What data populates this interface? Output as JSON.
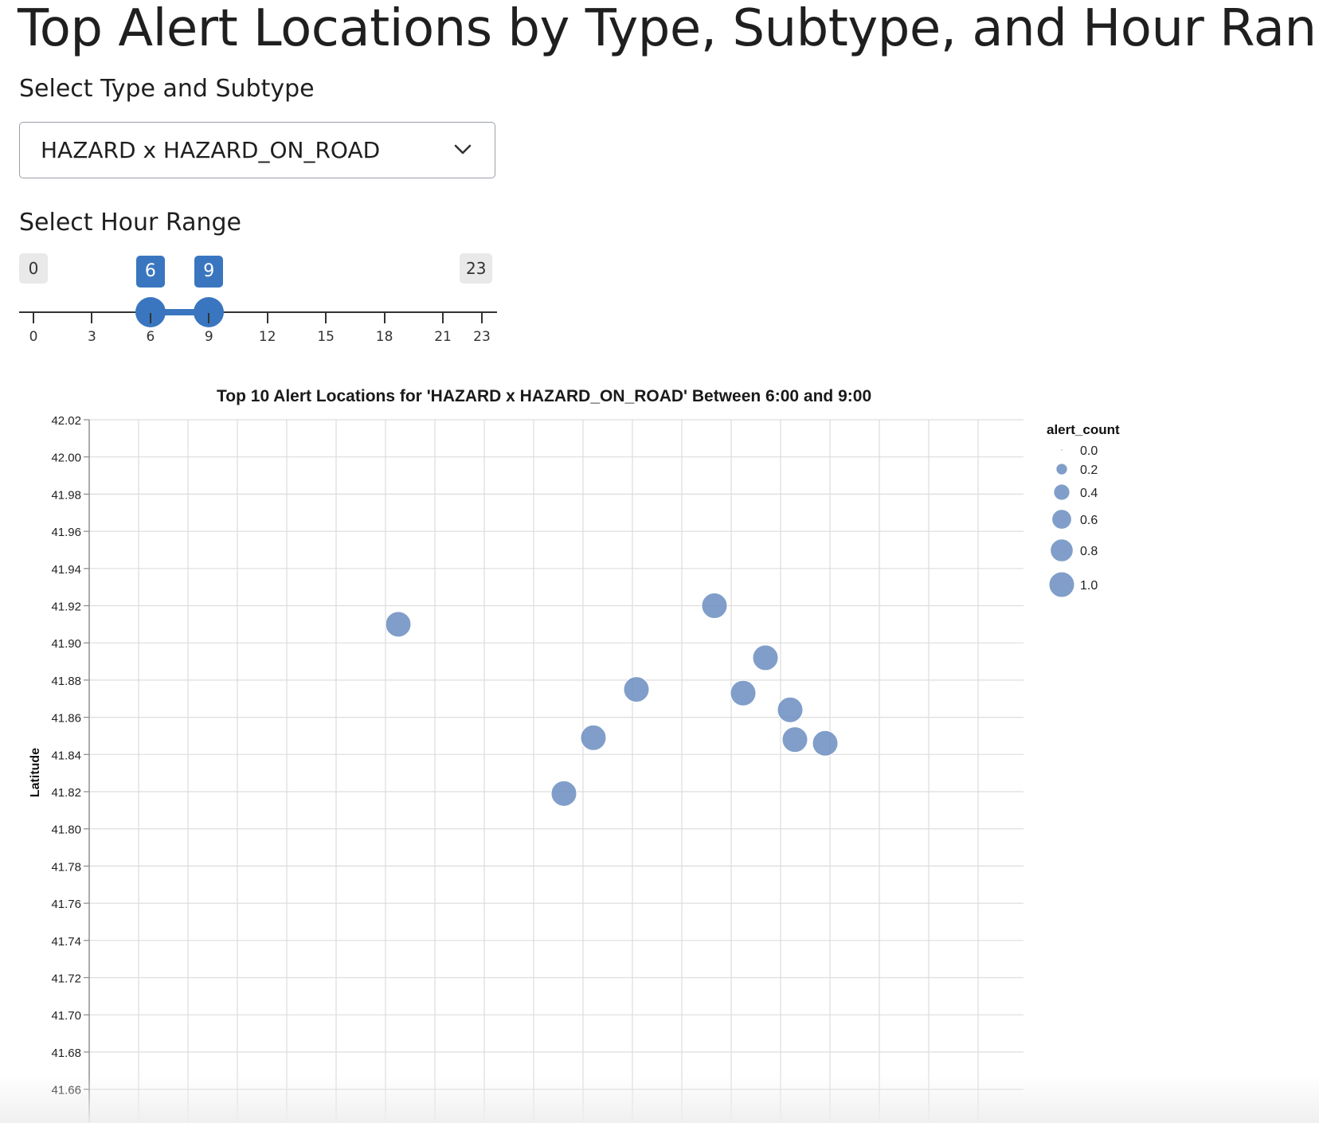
{
  "page": {
    "title": "Top Alert Locations by Type, Subtype, and Hour Range"
  },
  "type_select": {
    "label": "Select Type and Subtype",
    "value": "HAZARD x HAZARD_ON_ROAD",
    "icon": "chevron-down-icon"
  },
  "hour_slider": {
    "label": "Select Hour Range",
    "min": 0,
    "max": 23,
    "min_label": "0",
    "max_label": "23",
    "from": 6,
    "to": 9,
    "from_label": "6",
    "to_label": "9",
    "ticks": [
      "0",
      "3",
      "6",
      "9",
      "12",
      "15",
      "18",
      "21",
      "23"
    ],
    "accent": "#3a76c0"
  },
  "chart_data": {
    "type": "scatter",
    "title": "Top 10 Alert Locations for 'HAZARD x HAZARD_ON_ROAD' Between 6:00 and 9:00",
    "ylabel": "Latitude",
    "xlabel": "",
    "ylim": [
      41.64,
      42.02
    ],
    "y_ticks": [
      "42.02",
      "42.00",
      "41.98",
      "41.96",
      "41.94",
      "41.92",
      "41.90",
      "41.88",
      "41.86",
      "41.84",
      "41.82",
      "41.80",
      "41.78",
      "41.76",
      "41.74",
      "41.72",
      "41.70",
      "41.68",
      "41.66"
    ],
    "grid": true,
    "point_color": "#6a8dbf",
    "legend": {
      "title": "alert_count",
      "placement": "right",
      "entries": [
        "0.0",
        "0.2",
        "0.4",
        "0.6",
        "0.8",
        "1.0"
      ],
      "values": [
        0.0,
        0.2,
        0.4,
        0.6,
        0.8,
        1.0
      ]
    },
    "points": [
      {
        "lat": 41.91,
        "alert_count": 1.0
      },
      {
        "lat": 41.92,
        "alert_count": 1.0
      },
      {
        "lat": 41.892,
        "alert_count": 1.0
      },
      {
        "lat": 41.873,
        "alert_count": 1.0
      },
      {
        "lat": 41.875,
        "alert_count": 1.0
      },
      {
        "lat": 41.864,
        "alert_count": 1.0
      },
      {
        "lat": 41.849,
        "alert_count": 1.0
      },
      {
        "lat": 41.848,
        "alert_count": 1.0
      },
      {
        "lat": 41.846,
        "alert_count": 1.0
      },
      {
        "lat": 41.819,
        "alert_count": 1.0
      }
    ]
  }
}
